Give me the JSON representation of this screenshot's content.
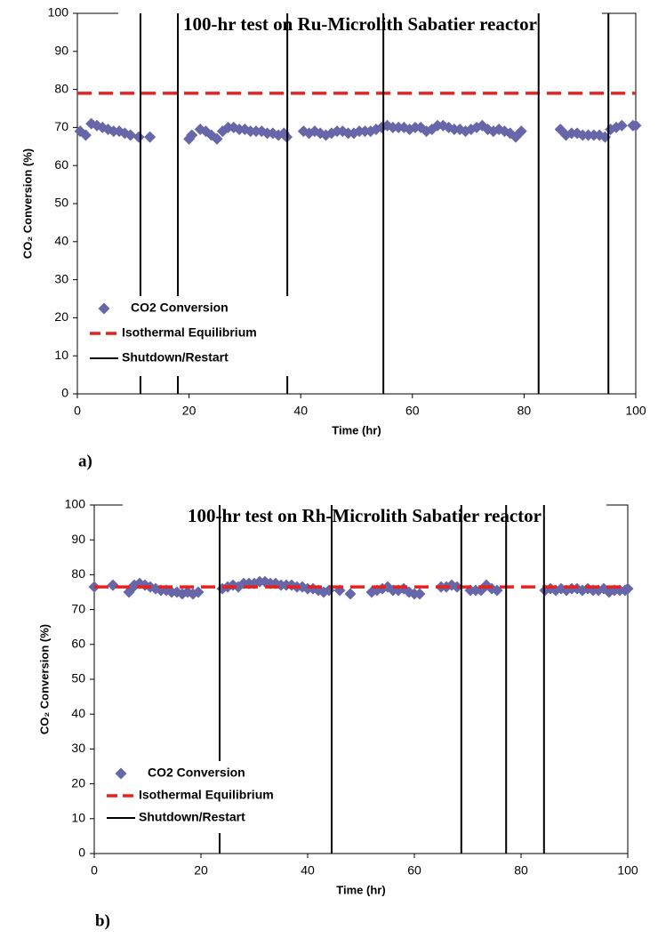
{
  "chart_data": [
    {
      "type": "scatter",
      "title": "100-hr test on Ru-Microlith Sabatier reactor",
      "xlabel": "Time (hr)",
      "ylabel": "CO₂ Conversion (%)",
      "caption": "a)",
      "xlim": [
        0,
        100
      ],
      "xticks": [
        0,
        20,
        40,
        60,
        80,
        100
      ],
      "ylim": [
        0,
        100
      ],
      "yticks": [
        0,
        10,
        20,
        30,
        40,
        50,
        60,
        70,
        80,
        90,
        100
      ],
      "grid": false,
      "legend": "lower left",
      "series": [
        {
          "name": "CO2 Conversion",
          "color": "#6666a8",
          "marker": "diamond",
          "x": [
            0.5,
            1.5,
            2.5,
            3.5,
            4.5,
            5.5,
            6.5,
            7.5,
            8.5,
            9.5,
            11,
            13,
            20,
            20.5,
            22,
            23,
            24,
            25,
            26,
            27,
            28,
            29,
            30,
            31,
            32,
            33,
            34,
            35,
            36,
            37,
            37.5,
            40.5,
            41.5,
            42.5,
            43.5,
            44.5,
            45.5,
            46.5,
            47.5,
            48.5,
            49.5,
            50.5,
            51.5,
            52.5,
            53.5,
            54.5,
            55.5,
            56.5,
            57.5,
            58.5,
            59.5,
            60.5,
            61.5,
            62.5,
            63.5,
            64.5,
            65.5,
            66.5,
            67.5,
            68.5,
            69.5,
            70.5,
            71.5,
            72.5,
            73.5,
            74.5,
            75.5,
            76.5,
            77.5,
            78.5,
            79.5,
            86.5,
            87.5,
            88.5,
            89.5,
            90.5,
            91.5,
            92.5,
            93.5,
            94.5,
            95.5,
            96.5,
            97.5,
            99.5,
            100
          ],
          "values": [
            69,
            68,
            71,
            70.5,
            70,
            69.5,
            69,
            69,
            68.5,
            68,
            67.5,
            67.5,
            67,
            68,
            69.5,
            69,
            68,
            67,
            69,
            70,
            70,
            69.5,
            69.5,
            69,
            69,
            69,
            68.5,
            68.5,
            68,
            68.5,
            67.5,
            69,
            68.5,
            69,
            68.5,
            68,
            68.5,
            69,
            69,
            68.5,
            68.5,
            69,
            69,
            69,
            69.5,
            70,
            70.5,
            70,
            70,
            70,
            69.5,
            70,
            70,
            69,
            69.5,
            70.5,
            70.5,
            70,
            69.5,
            69.5,
            69,
            69.5,
            70,
            70.5,
            69.5,
            69,
            69.5,
            69,
            68.5,
            67.5,
            69,
            69.5,
            68,
            68.5,
            68.5,
            68,
            68,
            68,
            68,
            67.5,
            69.5,
            70,
            70.5,
            70.5,
            70.5
          ]
        },
        {
          "name": "Isothermal Equilibrium",
          "color": "#e8201e",
          "style": "dashed",
          "x": [
            0,
            100
          ],
          "values": [
            79,
            79
          ]
        },
        {
          "name": "Shutdown/Restart",
          "color": "#000000",
          "style": "vertical",
          "x": [
            11.3,
            18,
            37.6,
            54.8,
            82.6,
            95.1
          ]
        }
      ]
    },
    {
      "type": "scatter",
      "title": "100-hr test on Rh-Microlith Sabatier reactor",
      "xlabel": "Time (hr)",
      "ylabel": "CO₂ Conversion (%)",
      "caption": "b)",
      "xlim": [
        0,
        100
      ],
      "xticks": [
        0,
        20,
        40,
        60,
        80,
        100
      ],
      "ylim": [
        0,
        100
      ],
      "yticks": [
        0,
        10,
        20,
        30,
        40,
        50,
        60,
        70,
        80,
        90,
        100
      ],
      "grid": false,
      "legend": "lower left",
      "series": [
        {
          "name": "CO2 Conversion",
          "color": "#6666a8",
          "marker": "diamond",
          "x": [
            0,
            3.5,
            6.5,
            7,
            7.5,
            8.5,
            9.5,
            10.5,
            11.5,
            12.5,
            13.5,
            14.5,
            15.5,
            16.5,
            17.5,
            18.5,
            19.5,
            24,
            25,
            26,
            27,
            28,
            29,
            30,
            31,
            32,
            33,
            34,
            35,
            36,
            37,
            38,
            39,
            40,
            41,
            42,
            43,
            44,
            46,
            48,
            52,
            53,
            54,
            55,
            56,
            57,
            58,
            59,
            60,
            61,
            65,
            66,
            67,
            68,
            70.5,
            71.5,
            72.5,
            73.5,
            74.5,
            75.5,
            84.5,
            85.5,
            86.5,
            87.5,
            88.5,
            89.5,
            90.5,
            91.5,
            92.5,
            93.5,
            94.5,
            95.5,
            96.5,
            97.5,
            98.5,
            99.5,
            100
          ],
          "values": [
            76.5,
            77,
            75,
            76,
            77,
            77.5,
            77,
            76.5,
            76,
            75.5,
            75.5,
            75,
            75,
            74.5,
            75,
            74.5,
            75,
            76,
            76.5,
            77,
            76.5,
            77.5,
            77.5,
            77.5,
            78,
            78,
            77.5,
            77.5,
            77,
            77,
            77,
            76.5,
            76.5,
            76,
            76,
            75.5,
            75,
            75.5,
            75.5,
            74.5,
            75,
            75.5,
            76,
            76.5,
            75.5,
            75.5,
            76,
            75,
            74.5,
            74.5,
            76.5,
            76.5,
            77,
            76.5,
            75.5,
            75.5,
            75.5,
            77,
            76,
            75.5,
            75.5,
            76,
            75.5,
            76,
            75.5,
            76,
            76,
            75.5,
            76,
            75.5,
            75.5,
            76,
            75,
            75.5,
            75.5,
            75.5,
            76
          ]
        },
        {
          "name": "Isothermal Equilibrium",
          "color": "#e8201e",
          "style": "dashed",
          "x": [
            0,
            100
          ],
          "values": [
            76.5,
            76.5
          ]
        },
        {
          "name": "Shutdown/Restart",
          "color": "#000000",
          "style": "vertical",
          "x": [
            23.5,
            44.5,
            68.8,
            77.2,
            84.3
          ]
        }
      ]
    }
  ]
}
